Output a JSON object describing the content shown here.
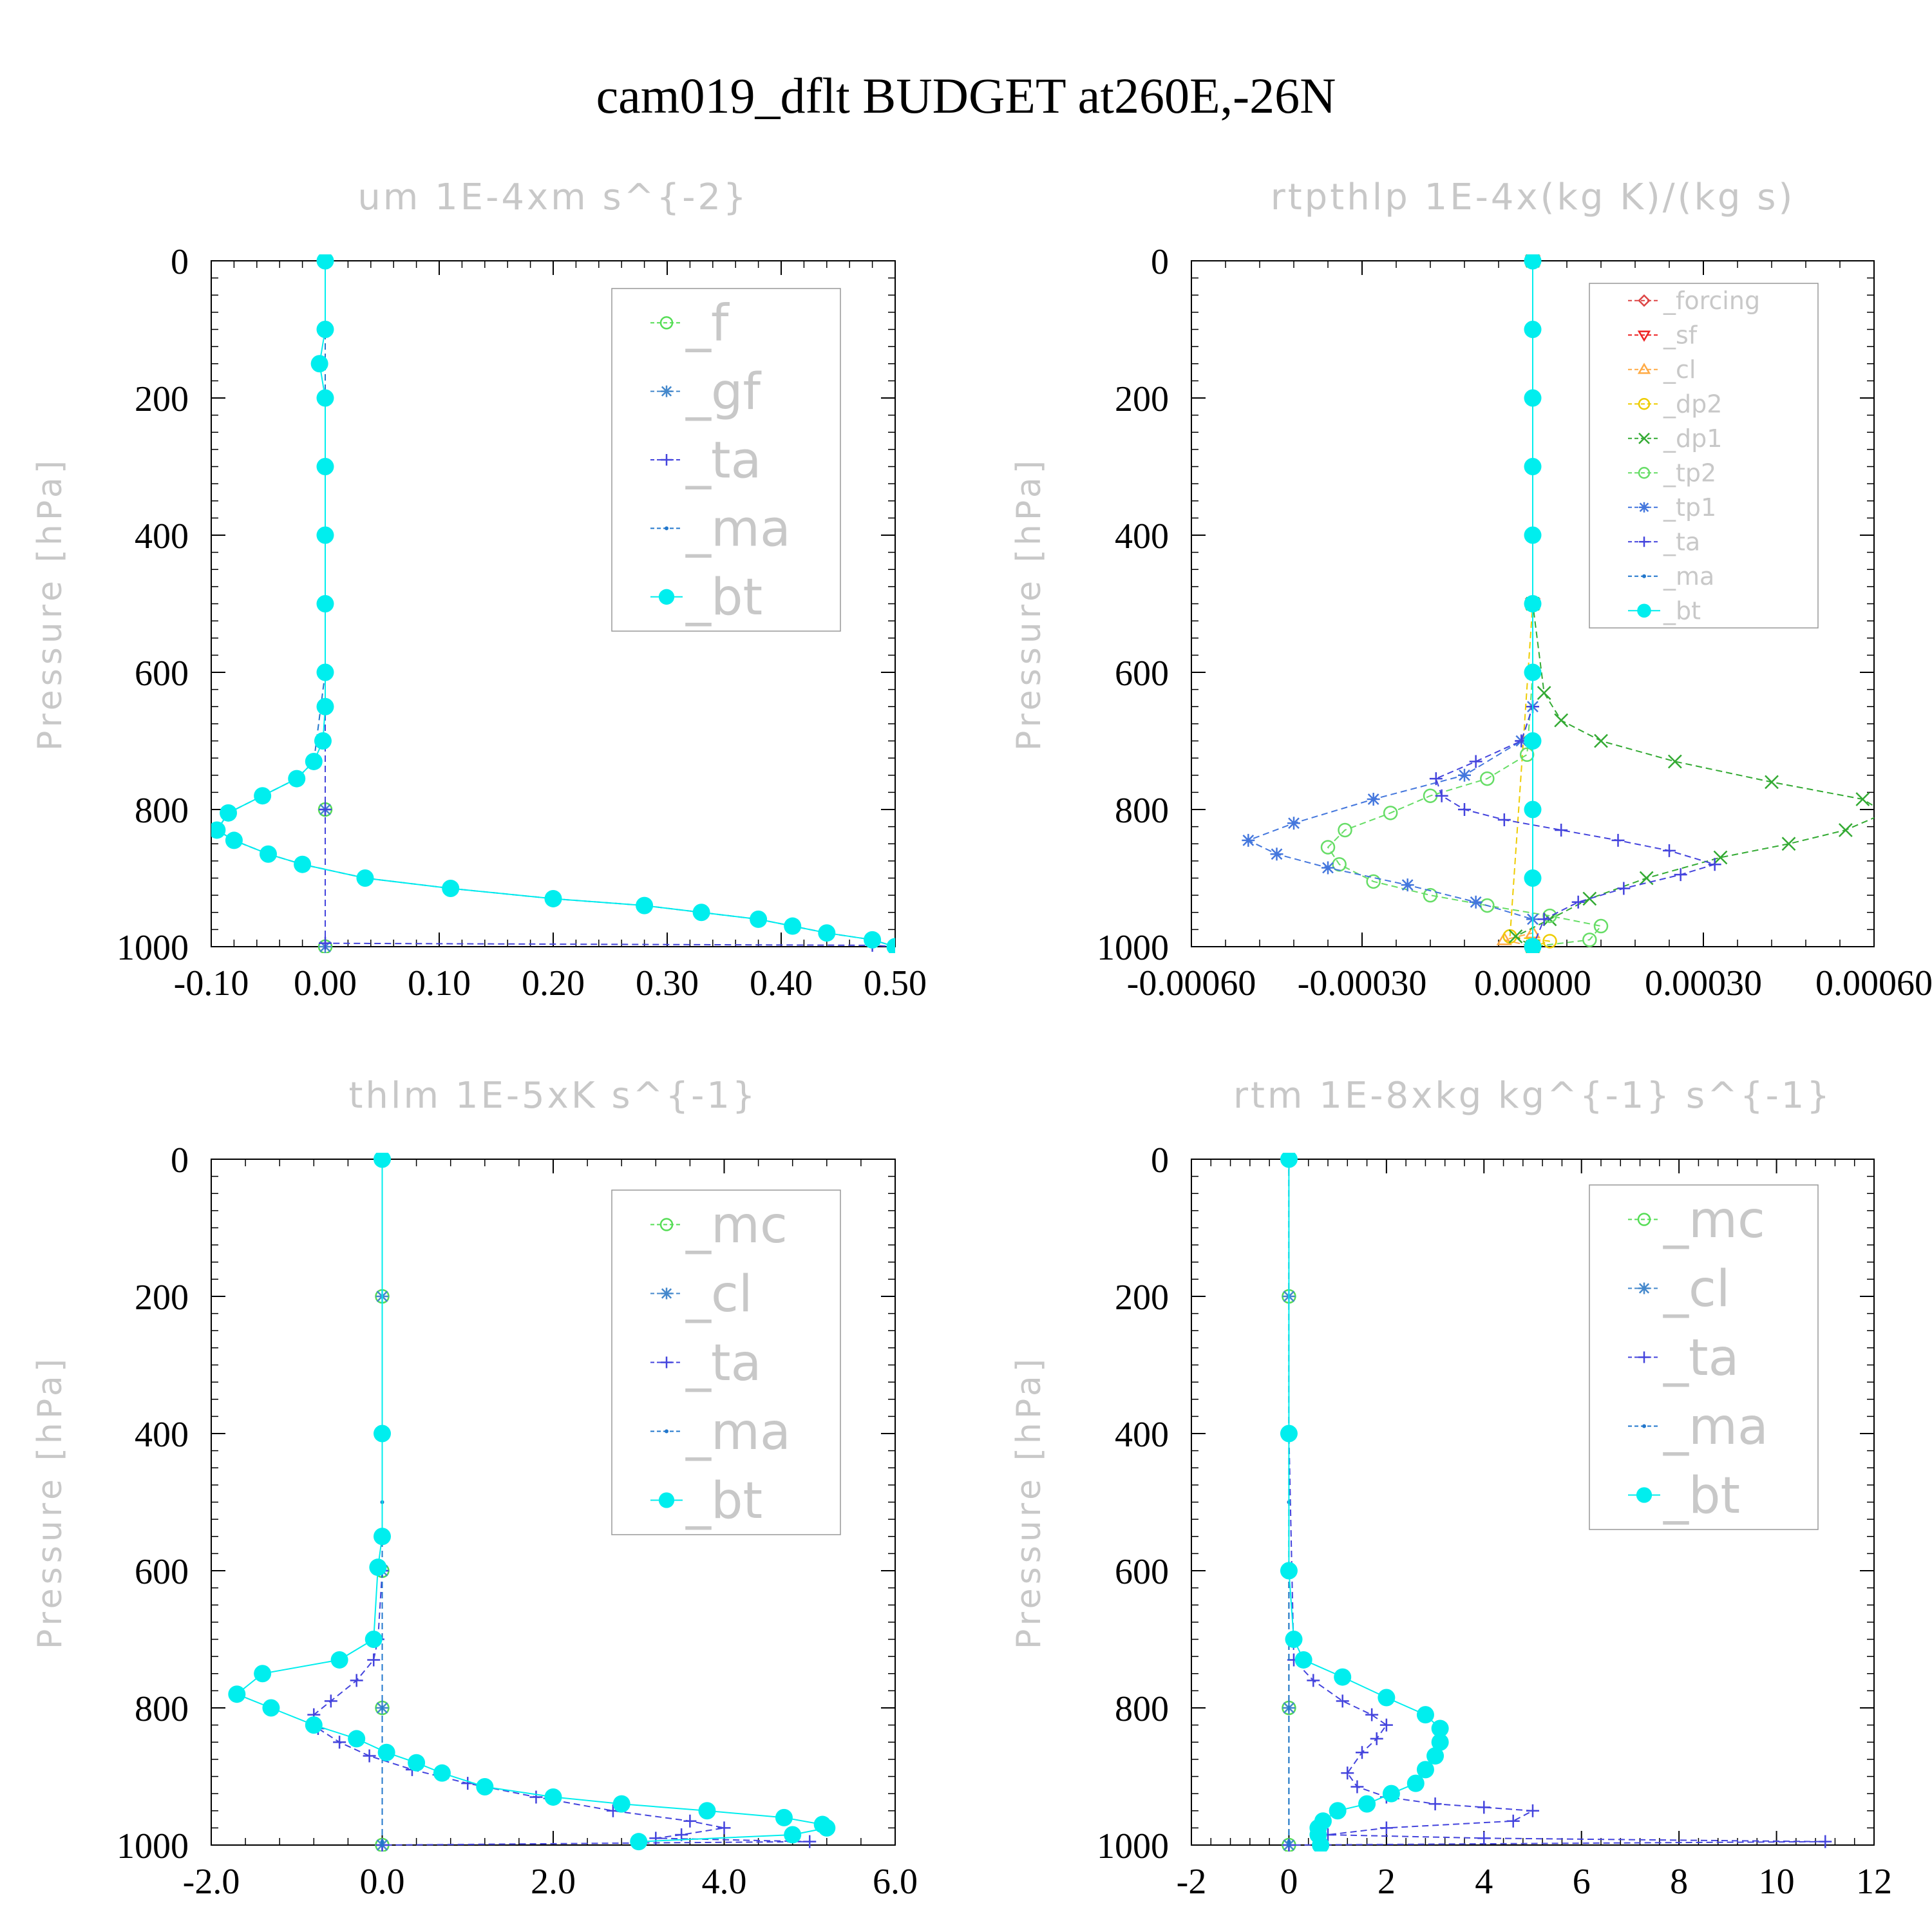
{
  "title": "cam019_dflt  BUDGET at260E,-26N",
  "colors": {
    "f": "#55dd55",
    "gf": "#4488cc",
    "ta": "#4444dd",
    "ma": "#2277cc",
    "bt": "#00eeee",
    "forcing": "#dd4444",
    "sf": "#ee2222",
    "cl": "#ffaa44",
    "dp2": "#eecc00",
    "dp1": "#33aa33",
    "tp2": "#66dd66",
    "tp1": "#4477dd",
    "mc": "#55dd55"
  },
  "chart_data": [
    {
      "type": "line",
      "title": "um  1E-4xm s^{-2}",
      "ylabel": "Pressure [hPa]",
      "xlim": [
        -0.1,
        0.5
      ],
      "ylim": [
        1000,
        0
      ],
      "xticks": [
        "-0.10",
        "0.00",
        "0.10",
        "0.20",
        "0.30",
        "0.40",
        "0.50"
      ],
      "yticks": [
        "0",
        "200",
        "400",
        "600",
        "800",
        "1000"
      ],
      "legend_position": "top-right",
      "series": [
        {
          "name": "_f",
          "marker": "circle-open",
          "color": "f",
          "x": [
            0,
            0,
            0,
            0,
            0,
            0
          ],
          "y": [
            0,
            200,
            400,
            600,
            800,
            1000
          ]
        },
        {
          "name": "_gf",
          "marker": "star",
          "color": "gf",
          "x": [
            0,
            0,
            0,
            0,
            0,
            0
          ],
          "y": [
            0,
            200,
            400,
            600,
            800,
            1000
          ]
        },
        {
          "name": "_ta",
          "marker": "plus",
          "color": "ta",
          "x": [
            0,
            0,
            0,
            0,
            0,
            0,
            0.48,
            0.5
          ],
          "y": [
            0,
            200,
            400,
            600,
            800,
            995,
            998,
            1000
          ]
        },
        {
          "name": "_ma",
          "marker": "dot",
          "color": "ma",
          "x": [
            0,
            0,
            0,
            -0.01,
            -0.025,
            -0.055,
            -0.085,
            -0.095,
            -0.08,
            -0.05,
            -0.02,
            0.035,
            0.11,
            0.2,
            0.28,
            0.33,
            0.38,
            0.41,
            0.44,
            0.48,
            0.5
          ],
          "y": [
            0,
            200,
            600,
            730,
            755,
            780,
            805,
            830,
            845,
            865,
            880,
            900,
            915,
            930,
            940,
            950,
            960,
            970,
            980,
            990,
            1000
          ]
        },
        {
          "name": "_bt",
          "marker": "dot-filled",
          "color": "bt",
          "x": [
            0,
            0,
            -0.005,
            0,
            0,
            0,
            0,
            0,
            0,
            -0.002,
            -0.01,
            -0.025,
            -0.055,
            -0.085,
            -0.095,
            -0.08,
            -0.05,
            -0.02,
            0.035,
            0.11,
            0.2,
            0.28,
            0.33,
            0.38,
            0.41,
            0.44,
            0.48,
            0.5
          ],
          "y": [
            0,
            100,
            150,
            200,
            300,
            400,
            500,
            600,
            650,
            700,
            730,
            755,
            780,
            805,
            830,
            845,
            865,
            880,
            900,
            915,
            930,
            940,
            950,
            960,
            970,
            980,
            990,
            1000
          ]
        }
      ]
    },
    {
      "type": "line",
      "title": "rtpthlp  1E-4x(kg K)/(kg s)",
      "ylabel": "Pressure [hPa]",
      "xlim": [
        -0.0006,
        0.0006
      ],
      "ylim": [
        1000,
        0
      ],
      "xticks": [
        "-0.00060",
        "-0.00030",
        "0.00000",
        "0.00030",
        "0.00060"
      ],
      "yticks": [
        "0",
        "200",
        "400",
        "600",
        "800",
        "1000"
      ],
      "legend_position": "top-right",
      "series": [
        {
          "name": "_forcing",
          "marker": "diamond",
          "color": "forcing",
          "x": [
            0,
            0,
            0
          ],
          "y": [
            0,
            500,
            1000
          ]
        },
        {
          "name": "_sf",
          "marker": "triangle-down",
          "color": "sf",
          "x": [
            0,
            0,
            0
          ],
          "y": [
            0,
            500,
            1000
          ]
        },
        {
          "name": "_cl",
          "marker": "triangle-up",
          "color": "cl",
          "x": [
            0,
            0,
            0,
            -5e-05,
            0
          ],
          "y": [
            0,
            500,
            980,
            990,
            1000
          ]
        },
        {
          "name": "_dp2",
          "marker": "circle-open",
          "color": "dp2",
          "x": [
            0,
            0,
            -4e-05,
            3e-05,
            0
          ],
          "y": [
            0,
            500,
            985,
            992,
            1000
          ]
        },
        {
          "name": "_dp1",
          "marker": "x",
          "color": "dp1",
          "x": [
            0,
            0,
            2e-05,
            5e-05,
            0.00012,
            0.00025,
            0.00042,
            0.00058,
            0.00062,
            0.00055,
            0.00045,
            0.00033,
            0.0002,
            0.0001,
            3e-05,
            -3e-05,
            0
          ],
          "y": [
            0,
            500,
            630,
            670,
            700,
            730,
            760,
            785,
            805,
            830,
            850,
            870,
            900,
            930,
            960,
            985,
            1000
          ]
        },
        {
          "name": "_tp2",
          "marker": "circle-open",
          "color": "tp2",
          "x": [
            0,
            0,
            -1e-05,
            -8e-05,
            -0.00018,
            -0.00025,
            -0.00033,
            -0.00036,
            -0.00034,
            -0.00028,
            -0.00018,
            -8e-05,
            3e-05,
            0.00012,
            0.0001,
            0
          ],
          "y": [
            0,
            600,
            720,
            755,
            780,
            805,
            830,
            855,
            880,
            905,
            925,
            940,
            955,
            970,
            990,
            1000
          ]
        },
        {
          "name": "_tp1",
          "marker": "star",
          "color": "tp1",
          "x": [
            0,
            0,
            -2e-05,
            -0.00012,
            -0.00028,
            -0.00042,
            -0.0005,
            -0.00045,
            -0.00036,
            -0.00022,
            -0.0001,
            0,
            0
          ],
          "y": [
            0,
            650,
            700,
            750,
            785,
            820,
            845,
            865,
            885,
            910,
            935,
            960,
            1000
          ]
        },
        {
          "name": "_ta",
          "marker": "plus",
          "color": "ta",
          "x": [
            0,
            0,
            -2e-05,
            -0.0001,
            -0.00017,
            -0.00016,
            -0.00012,
            -5e-05,
            5e-05,
            0.00015,
            0.00024,
            0.00032,
            0.00026,
            0.00016,
            8e-05,
            2e-05,
            0
          ],
          "y": [
            0,
            650,
            700,
            730,
            755,
            780,
            800,
            815,
            830,
            845,
            860,
            880,
            895,
            915,
            935,
            960,
            1000
          ]
        },
        {
          "name": "_ma",
          "marker": "dot",
          "color": "ma",
          "x": [
            0,
            0,
            0
          ],
          "y": [
            0,
            500,
            1000
          ]
        },
        {
          "name": "_bt",
          "marker": "dot-filled",
          "color": "bt",
          "x": [
            0,
            0,
            0,
            0,
            0,
            0,
            0,
            0,
            0,
            0,
            0
          ],
          "y": [
            0,
            100,
            200,
            300,
            400,
            500,
            600,
            700,
            800,
            900,
            1000
          ]
        }
      ]
    },
    {
      "type": "line",
      "title": "thlm  1E-5xK s^{-1}",
      "ylabel": "Pressure [hPa]",
      "xlim": [
        -2.0,
        6.0
      ],
      "ylim": [
        1000,
        0
      ],
      "xticks": [
        "-2.0",
        "0.0",
        "2.0",
        "4.0",
        "6.0"
      ],
      "yticks": [
        "0",
        "200",
        "400",
        "600",
        "800",
        "1000"
      ],
      "legend_position": "top-right",
      "series": [
        {
          "name": "_mc",
          "marker": "circle-open",
          "color": "mc",
          "x": [
            0,
            0,
            0,
            0,
            0,
            0
          ],
          "y": [
            0,
            200,
            400,
            600,
            800,
            1000
          ]
        },
        {
          "name": "_cl",
          "marker": "star",
          "color": "gf",
          "x": [
            0,
            0,
            0,
            0,
            0,
            0
          ],
          "y": [
            0,
            200,
            400,
            600,
            800,
            1000
          ]
        },
        {
          "name": "_ta",
          "marker": "plus",
          "color": "ta",
          "x": [
            0,
            0,
            0,
            -0.05,
            -0.1,
            -0.3,
            -0.6,
            -0.8,
            -0.75,
            -0.5,
            -0.15,
            0.35,
            1.0,
            1.8,
            2.7,
            3.6,
            4.0,
            3.5,
            3.2,
            5.0,
            0
          ],
          "y": [
            0,
            400,
            600,
            700,
            730,
            760,
            790,
            810,
            830,
            850,
            870,
            890,
            910,
            930,
            950,
            965,
            975,
            985,
            990,
            995,
            1000
          ]
        },
        {
          "name": "_ma",
          "marker": "dot",
          "color": "ma",
          "x": [
            0,
            0,
            0,
            0
          ],
          "y": [
            0,
            500,
            995,
            1000
          ]
        },
        {
          "name": "_bt",
          "marker": "dot-filled",
          "color": "bt",
          "x": [
            0,
            0,
            0,
            -0.05,
            -0.1,
            -0.5,
            -1.4,
            -1.7,
            -1.3,
            -0.8,
            -0.3,
            0.05,
            0.4,
            0.7,
            1.2,
            2.0,
            2.8,
            3.8,
            4.7,
            5.15,
            5.2,
            4.8,
            3.0
          ],
          "y": [
            0,
            400,
            550,
            595,
            700,
            730,
            750,
            780,
            800,
            825,
            845,
            865,
            880,
            895,
            915,
            930,
            940,
            950,
            960,
            970,
            975,
            985,
            995
          ]
        }
      ]
    },
    {
      "type": "line",
      "title": "rtm  1E-8xkg kg^{-1} s^{-1}",
      "ylabel": "Pressure [hPa]",
      "xlim": [
        -2,
        12
      ],
      "ylim": [
        1000,
        0
      ],
      "xticks": [
        "-2",
        "0",
        "2",
        "4",
        "6",
        "8",
        "10",
        "12"
      ],
      "yticks": [
        "0",
        "200",
        "400",
        "600",
        "800",
        "1000"
      ],
      "legend_position": "top-right",
      "series": [
        {
          "name": "_mc",
          "marker": "circle-open",
          "color": "mc",
          "x": [
            0,
            0,
            0,
            0,
            0,
            0
          ],
          "y": [
            0,
            200,
            400,
            600,
            800,
            1000
          ]
        },
        {
          "name": "_cl",
          "marker": "star",
          "color": "gf",
          "x": [
            0,
            0,
            0,
            0,
            0,
            0
          ],
          "y": [
            0,
            200,
            400,
            600,
            800,
            1000
          ]
        },
        {
          "name": "_ta",
          "marker": "plus",
          "color": "ta",
          "x": [
            0,
            0,
            0.1,
            0.5,
            1.1,
            1.7,
            2.0,
            1.8,
            1.5,
            1.2,
            1.4,
            2.0,
            3.0,
            4.0,
            5.0,
            4.6,
            2.0,
            0.8,
            4.0,
            11.0,
            0
          ],
          "y": [
            0,
            400,
            730,
            760,
            790,
            810,
            825,
            845,
            865,
            895,
            915,
            930,
            940,
            945,
            950,
            965,
            975,
            985,
            990,
            995,
            1000
          ]
        },
        {
          "name": "_ma",
          "marker": "dot",
          "color": "ma",
          "x": [
            0,
            0,
            0,
            0
          ],
          "y": [
            0,
            500,
            995,
            1000
          ]
        },
        {
          "name": "_bt",
          "marker": "dot-filled",
          "color": "bt",
          "x": [
            0,
            0,
            0,
            0.1,
            0.3,
            1.1,
            2.0,
            2.8,
            3.1,
            3.1,
            3.0,
            2.8,
            2.6,
            2.1,
            1.6,
            1.0,
            0.7,
            0.6,
            0.6,
            0.65
          ],
          "y": [
            0,
            400,
            600,
            700,
            730,
            755,
            785,
            810,
            830,
            850,
            870,
            890,
            910,
            925,
            940,
            950,
            965,
            975,
            985,
            1000
          ]
        }
      ]
    }
  ]
}
